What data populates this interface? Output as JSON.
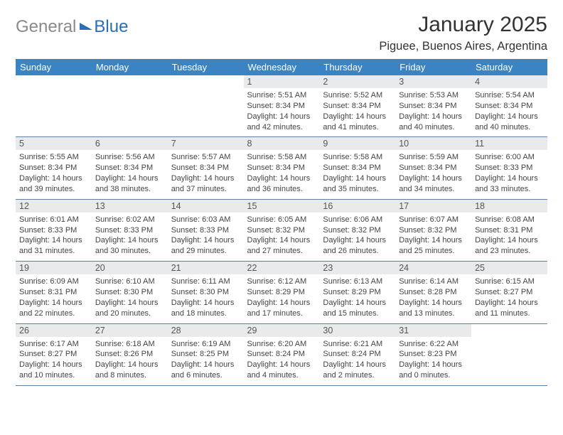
{
  "brand": {
    "word1": "General",
    "word2": "Blue"
  },
  "title": "January 2025",
  "location": "Piguee, Buenos Aires, Argentina",
  "day_headers": [
    "Sunday",
    "Monday",
    "Tuesday",
    "Wednesday",
    "Thursday",
    "Friday",
    "Saturday"
  ],
  "colors": {
    "header_bg": "#3b84c4",
    "header_fg": "#ffffff",
    "daynum_bg": "#e9eaeb",
    "rule": "#5a82a8",
    "brand_gray": "#8a8a8a",
    "brand_blue": "#2a6db8"
  },
  "weeks": [
    [
      {
        "n": "",
        "lines": []
      },
      {
        "n": "",
        "lines": []
      },
      {
        "n": "",
        "lines": []
      },
      {
        "n": "1",
        "lines": [
          "Sunrise: 5:51 AM",
          "Sunset: 8:34 PM",
          "Daylight: 14 hours and 42 minutes."
        ]
      },
      {
        "n": "2",
        "lines": [
          "Sunrise: 5:52 AM",
          "Sunset: 8:34 PM",
          "Daylight: 14 hours and 41 minutes."
        ]
      },
      {
        "n": "3",
        "lines": [
          "Sunrise: 5:53 AM",
          "Sunset: 8:34 PM",
          "Daylight: 14 hours and 40 minutes."
        ]
      },
      {
        "n": "4",
        "lines": [
          "Sunrise: 5:54 AM",
          "Sunset: 8:34 PM",
          "Daylight: 14 hours and 40 minutes."
        ]
      }
    ],
    [
      {
        "n": "5",
        "lines": [
          "Sunrise: 5:55 AM",
          "Sunset: 8:34 PM",
          "Daylight: 14 hours and 39 minutes."
        ]
      },
      {
        "n": "6",
        "lines": [
          "Sunrise: 5:56 AM",
          "Sunset: 8:34 PM",
          "Daylight: 14 hours and 38 minutes."
        ]
      },
      {
        "n": "7",
        "lines": [
          "Sunrise: 5:57 AM",
          "Sunset: 8:34 PM",
          "Daylight: 14 hours and 37 minutes."
        ]
      },
      {
        "n": "8",
        "lines": [
          "Sunrise: 5:58 AM",
          "Sunset: 8:34 PM",
          "Daylight: 14 hours and 36 minutes."
        ]
      },
      {
        "n": "9",
        "lines": [
          "Sunrise: 5:58 AM",
          "Sunset: 8:34 PM",
          "Daylight: 14 hours and 35 minutes."
        ]
      },
      {
        "n": "10",
        "lines": [
          "Sunrise: 5:59 AM",
          "Sunset: 8:34 PM",
          "Daylight: 14 hours and 34 minutes."
        ]
      },
      {
        "n": "11",
        "lines": [
          "Sunrise: 6:00 AM",
          "Sunset: 8:33 PM",
          "Daylight: 14 hours and 33 minutes."
        ]
      }
    ],
    [
      {
        "n": "12",
        "lines": [
          "Sunrise: 6:01 AM",
          "Sunset: 8:33 PM",
          "Daylight: 14 hours and 31 minutes."
        ]
      },
      {
        "n": "13",
        "lines": [
          "Sunrise: 6:02 AM",
          "Sunset: 8:33 PM",
          "Daylight: 14 hours and 30 minutes."
        ]
      },
      {
        "n": "14",
        "lines": [
          "Sunrise: 6:03 AM",
          "Sunset: 8:33 PM",
          "Daylight: 14 hours and 29 minutes."
        ]
      },
      {
        "n": "15",
        "lines": [
          "Sunrise: 6:05 AM",
          "Sunset: 8:32 PM",
          "Daylight: 14 hours and 27 minutes."
        ]
      },
      {
        "n": "16",
        "lines": [
          "Sunrise: 6:06 AM",
          "Sunset: 8:32 PM",
          "Daylight: 14 hours and 26 minutes."
        ]
      },
      {
        "n": "17",
        "lines": [
          "Sunrise: 6:07 AM",
          "Sunset: 8:32 PM",
          "Daylight: 14 hours and 25 minutes."
        ]
      },
      {
        "n": "18",
        "lines": [
          "Sunrise: 6:08 AM",
          "Sunset: 8:31 PM",
          "Daylight: 14 hours and 23 minutes."
        ]
      }
    ],
    [
      {
        "n": "19",
        "lines": [
          "Sunrise: 6:09 AM",
          "Sunset: 8:31 PM",
          "Daylight: 14 hours and 22 minutes."
        ]
      },
      {
        "n": "20",
        "lines": [
          "Sunrise: 6:10 AM",
          "Sunset: 8:30 PM",
          "Daylight: 14 hours and 20 minutes."
        ]
      },
      {
        "n": "21",
        "lines": [
          "Sunrise: 6:11 AM",
          "Sunset: 8:30 PM",
          "Daylight: 14 hours and 18 minutes."
        ]
      },
      {
        "n": "22",
        "lines": [
          "Sunrise: 6:12 AM",
          "Sunset: 8:29 PM",
          "Daylight: 14 hours and 17 minutes."
        ]
      },
      {
        "n": "23",
        "lines": [
          "Sunrise: 6:13 AM",
          "Sunset: 8:29 PM",
          "Daylight: 14 hours and 15 minutes."
        ]
      },
      {
        "n": "24",
        "lines": [
          "Sunrise: 6:14 AM",
          "Sunset: 8:28 PM",
          "Daylight: 14 hours and 13 minutes."
        ]
      },
      {
        "n": "25",
        "lines": [
          "Sunrise: 6:15 AM",
          "Sunset: 8:27 PM",
          "Daylight: 14 hours and 11 minutes."
        ]
      }
    ],
    [
      {
        "n": "26",
        "lines": [
          "Sunrise: 6:17 AM",
          "Sunset: 8:27 PM",
          "Daylight: 14 hours and 10 minutes."
        ]
      },
      {
        "n": "27",
        "lines": [
          "Sunrise: 6:18 AM",
          "Sunset: 8:26 PM",
          "Daylight: 14 hours and 8 minutes."
        ]
      },
      {
        "n": "28",
        "lines": [
          "Sunrise: 6:19 AM",
          "Sunset: 8:25 PM",
          "Daylight: 14 hours and 6 minutes."
        ]
      },
      {
        "n": "29",
        "lines": [
          "Sunrise: 6:20 AM",
          "Sunset: 8:24 PM",
          "Daylight: 14 hours and 4 minutes."
        ]
      },
      {
        "n": "30",
        "lines": [
          "Sunrise: 6:21 AM",
          "Sunset: 8:24 PM",
          "Daylight: 14 hours and 2 minutes."
        ]
      },
      {
        "n": "31",
        "lines": [
          "Sunrise: 6:22 AM",
          "Sunset: 8:23 PM",
          "Daylight: 14 hours and 0 minutes."
        ]
      },
      {
        "n": "",
        "lines": []
      }
    ]
  ]
}
